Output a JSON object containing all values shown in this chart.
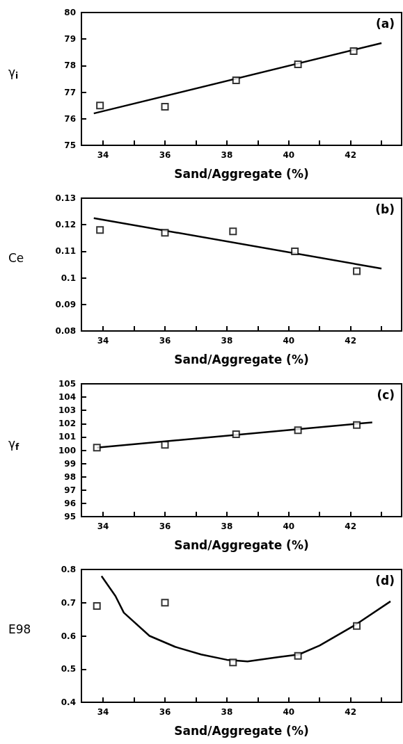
{
  "chart_data": [
    {
      "type": "scatter",
      "ylabel": "γ$_{i}$",
      "xlabel": "Sand/Aggregate (%)",
      "annotations": [
        "(a)"
      ],
      "marker": "square",
      "xlim": [
        33.3,
        43.65
      ],
      "ylim": [
        75,
        80
      ],
      "yticks": [
        75,
        76,
        77,
        78,
        79,
        80
      ],
      "xticks": [
        34,
        {
          "value": 35,
          "label": null
        },
        36,
        {
          "value": 37,
          "label": null
        },
        38,
        {
          "value": 39,
          "label": null
        },
        40,
        {
          "value": 41,
          "label": null
        },
        42,
        {
          "value": 43,
          "label": null
        }
      ],
      "series": [
        {
          "color": "#000000",
          "x": [
            33.9,
            36.0,
            38.3,
            40.3,
            42.1
          ],
          "values": [
            76.5,
            76.45,
            77.45,
            78.05,
            78.55
          ]
        },
        {
          "type": "line",
          "color": "#000000",
          "marker": "none",
          "x": [
            33.7,
            43.0
          ],
          "values": [
            76.2,
            78.85
          ]
        }
      ]
    },
    {
      "type": "scatter",
      "ylabel": "Ce",
      "xlabel": "Sand/Aggregate (%)",
      "annotations": [
        "(b)"
      ],
      "marker": "square",
      "xlim": [
        33.3,
        43.65
      ],
      "ylim": [
        0.08,
        0.13
      ],
      "yticks": [
        0.08,
        0.09,
        0.1,
        0.11,
        0.12,
        0.13
      ],
      "xticks": [
        34,
        {
          "value": 35,
          "label": null
        },
        36,
        {
          "value": 37,
          "label": null
        },
        38,
        {
          "value": 39,
          "label": null
        },
        40,
        {
          "value": 41,
          "label": null
        },
        42,
        {
          "value": 43,
          "label": null
        }
      ],
      "series": [
        {
          "color": "#000000",
          "x": [
            33.9,
            36.0,
            38.2,
            40.2,
            42.2
          ],
          "values": [
            0.118,
            0.117,
            0.1175,
            0.11,
            0.1025
          ]
        },
        {
          "type": "line",
          "color": "#000000",
          "marker": "none",
          "x": [
            33.7,
            43.0
          ],
          "values": [
            0.1225,
            0.1035
          ]
        }
      ]
    },
    {
      "type": "scatter",
      "ylabel": "γ$_{f}$",
      "xlabel": "Sand/Aggregate (%)",
      "annotations": [
        "(c)"
      ],
      "marker": "square",
      "xlim": [
        33.3,
        43.65
      ],
      "ylim": [
        95,
        105
      ],
      "yticks": [
        95,
        96,
        97,
        98,
        99,
        100,
        101,
        102,
        103,
        104,
        105
      ],
      "xticks": [
        34,
        {
          "value": 35,
          "label": null
        },
        36,
        {
          "value": 37,
          "label": null
        },
        38,
        {
          "value": 39,
          "label": null
        },
        40,
        {
          "value": 41,
          "label": null
        },
        42,
        {
          "value": 43,
          "label": null
        }
      ],
      "series": [
        {
          "color": "#000000",
          "x": [
            33.8,
            36.0,
            38.3,
            40.3,
            42.2
          ],
          "values": [
            100.2,
            100.4,
            101.2,
            101.5,
            101.9
          ]
        },
        {
          "type": "line",
          "color": "#000000",
          "marker": "none",
          "x": [
            33.8,
            42.7
          ],
          "values": [
            100.2,
            102.1
          ]
        }
      ]
    },
    {
      "type": "scatter",
      "ylabel": "E98",
      "xlabel": "Sand/Aggregate (%)",
      "annotations": [
        "(d)"
      ],
      "marker": "square",
      "xlim": [
        33.3,
        43.65
      ],
      "ylim": [
        0.4,
        0.8
      ],
      "yticks": [
        0.4,
        0.5,
        0.6,
        0.7,
        0.8
      ],
      "xticks": [
        34,
        {
          "value": 35,
          "label": null
        },
        36,
        {
          "value": 37,
          "label": null
        },
        38,
        {
          "value": 39,
          "label": null
        },
        40,
        {
          "value": 41,
          "label": null
        },
        42,
        {
          "value": 43,
          "label": null
        }
      ],
      "series": [
        {
          "color": "#000000",
          "x": [
            33.8,
            36.0,
            38.2,
            40.3,
            42.2
          ],
          "values": [
            0.69,
            0.7,
            0.52,
            0.54,
            0.63
          ]
        },
        {
          "type": "line",
          "color": "#000000",
          "marker": "none",
          "x": [
            33.95,
            34.4,
            34.67,
            35.5,
            36.33,
            37.17,
            38.0,
            38.67,
            39.67,
            40.33,
            41.0,
            42.17,
            43.29
          ],
          "values": [
            0.78,
            0.72,
            0.67,
            0.6,
            0.567,
            0.544,
            0.528,
            0.523,
            0.536,
            0.544,
            0.571,
            0.634,
            0.704
          ]
        }
      ]
    }
  ]
}
